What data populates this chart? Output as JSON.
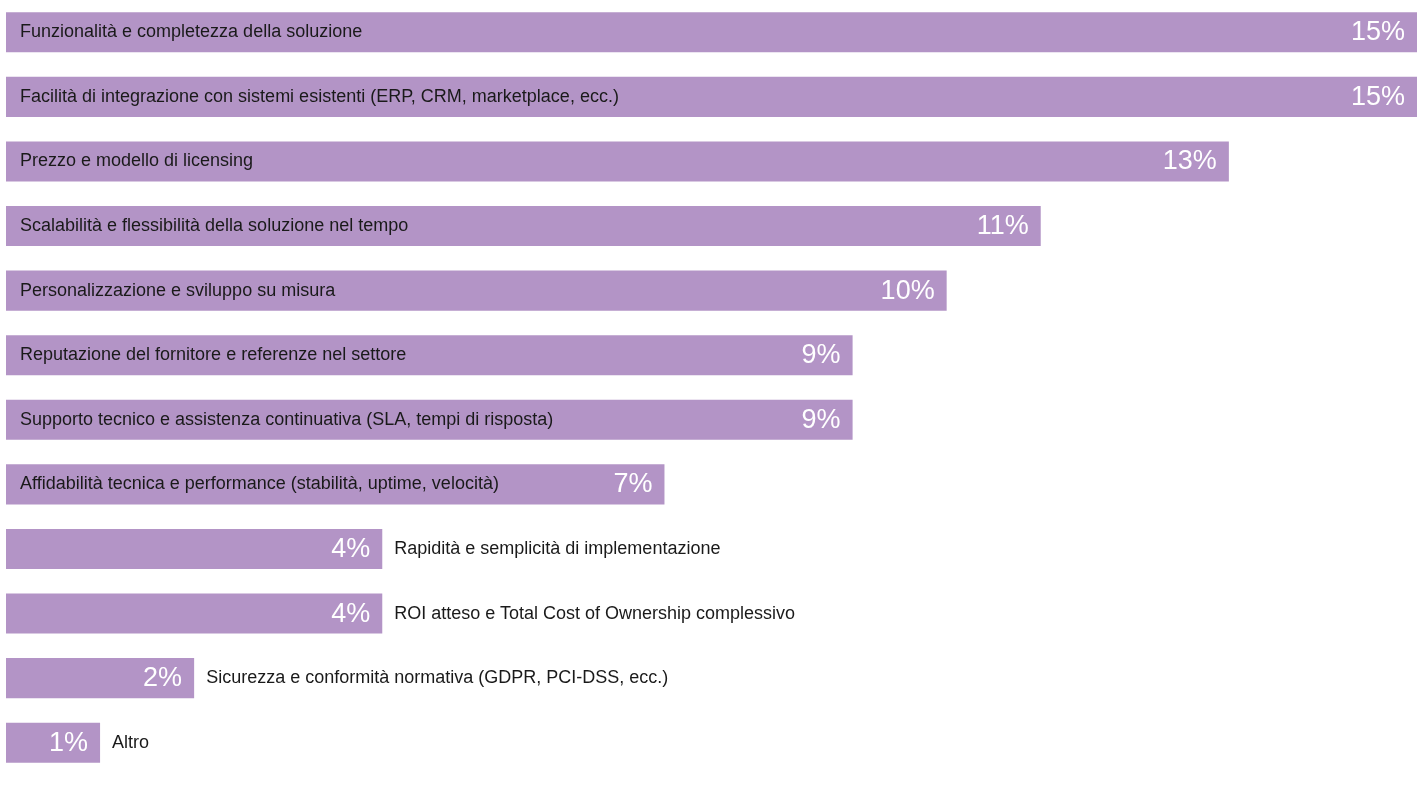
{
  "chart_data": {
    "type": "bar",
    "orientation": "horizontal",
    "categories": [
      "Funzionalità e completezza della soluzione",
      "Facilità di integrazione con sistemi esistenti (ERP, CRM, marketplace, ecc.)",
      "Prezzo e modello di licensing",
      "Scalabilità e flessibilità della soluzione nel tempo",
      "Personalizzazione e sviluppo su misura",
      "Reputazione del fornitore e referenze nel settore",
      "Supporto tecnico e assistenza continuativa (SLA, tempi di risposta)",
      "Affidabilità tecnica e performance (stabilità, uptime, velocità)",
      "Rapidità e semplicità di implementazione",
      "ROI atteso e Total Cost of Ownership complessivo",
      "Sicurezza e conformità normativa (GDPR, PCI-DSS, ecc.)",
      "Altro"
    ],
    "values": [
      15,
      15,
      13,
      11,
      10,
      9,
      9,
      7,
      4,
      4,
      2,
      1
    ],
    "value_labels": [
      "15%",
      "15%",
      "13%",
      "11%",
      "10%",
      "9%",
      "9%",
      "7%",
      "4%",
      "4%",
      "2%",
      "1%"
    ],
    "color": "#b394c6"
  }
}
